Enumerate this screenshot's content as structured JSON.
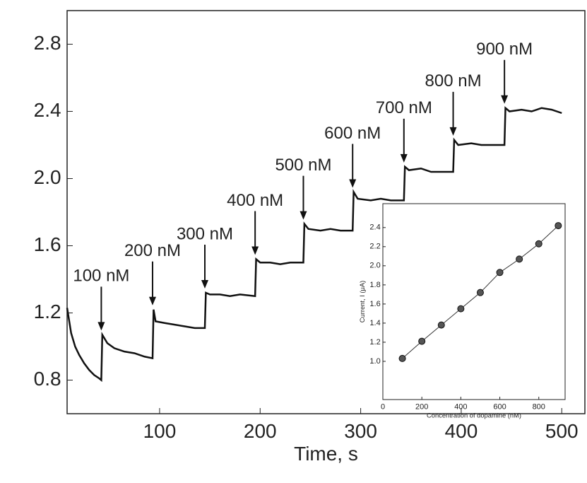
{
  "chart_data": [
    {
      "type": "line",
      "xlabel": "Time, s",
      "color": "#111111",
      "x": [
        8,
        12,
        16,
        20,
        25,
        30,
        35,
        40,
        42,
        43,
        48,
        55,
        65,
        75,
        85,
        93,
        94,
        96,
        105,
        115,
        125,
        135,
        145,
        146,
        150,
        160,
        170,
        180,
        195,
        196,
        200,
        210,
        220,
        230,
        243,
        244,
        248,
        260,
        270,
        280,
        292,
        293,
        297,
        310,
        320,
        330,
        343,
        344,
        348,
        360,
        370,
        380,
        392,
        393,
        397,
        410,
        420,
        430,
        443,
        444,
        448,
        460,
        470,
        480,
        490,
        500
      ],
      "values": [
        1.23,
        1.08,
        1.0,
        0.95,
        0.9,
        0.86,
        0.83,
        0.81,
        0.8,
        1.07,
        1.02,
        0.99,
        0.97,
        0.96,
        0.94,
        0.93,
        1.22,
        1.15,
        1.14,
        1.13,
        1.12,
        1.11,
        1.11,
        1.32,
        1.31,
        1.31,
        1.3,
        1.31,
        1.3,
        1.52,
        1.5,
        1.5,
        1.49,
        1.5,
        1.5,
        1.73,
        1.7,
        1.69,
        1.7,
        1.69,
        1.69,
        1.92,
        1.88,
        1.87,
        1.88,
        1.87,
        1.87,
        2.07,
        2.05,
        2.06,
        2.04,
        2.04,
        2.04,
        2.23,
        2.2,
        2.21,
        2.2,
        2.2,
        2.2,
        2.42,
        2.4,
        2.41,
        2.4,
        2.42,
        2.41,
        2.39
      ],
      "xlim": [
        8,
        523
      ],
      "ylim": [
        0.6,
        3.0
      ],
      "xticks": [
        100,
        200,
        300,
        400,
        500
      ],
      "yticks": [
        0.8,
        1.2,
        1.6,
        {
          "value": 2,
          "label": "2.0"
        },
        2.4,
        2.8
      ],
      "annotations": [
        {
          "text": "100 nM",
          "x": 42
        },
        {
          "text": "200 nM",
          "x": 93
        },
        {
          "text": "300 nM",
          "x": 145
        },
        {
          "text": "400 nM",
          "x": 195
        },
        {
          "text": "500 nM",
          "x": 243
        },
        {
          "text": "600 nM",
          "x": 292
        },
        {
          "text": "700 nM",
          "x": 343
        },
        {
          "text": "800 nM",
          "x": 392
        },
        {
          "text": "900 nM",
          "x": 443
        }
      ]
    },
    {
      "type": "scatter",
      "xlabel": "Concentration of dopamine (nM)",
      "ylabel": "Current, I (μA)",
      "color": "#333333",
      "x": [
        100,
        200,
        300,
        400,
        500,
        600,
        700,
        800,
        900
      ],
      "values": [
        1.03,
        1.21,
        1.38,
        1.55,
        1.72,
        1.93,
        2.07,
        2.23,
        2.42
      ],
      "xlim": [
        0,
        935
      ],
      "ylim": [
        0.6,
        2.65
      ],
      "xticks": [
        0,
        200,
        400,
        600,
        800
      ],
      "yticks": [
        {
          "value": 1,
          "label": "1.0"
        },
        1.2,
        1.4,
        1.6,
        1.8,
        {
          "value": 2,
          "label": "2.0"
        },
        2.2,
        2.4
      ]
    }
  ]
}
